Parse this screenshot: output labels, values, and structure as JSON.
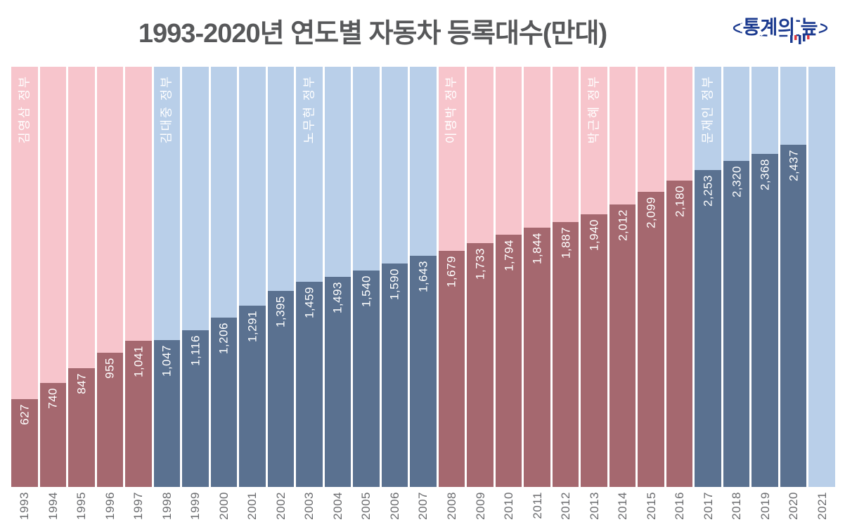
{
  "title": "1993-2020년 연도별 자동차 등록대수(만대)",
  "logo": {
    "text": "통계의 늪"
  },
  "colors": {
    "title_text": "#57585a",
    "axis_text": "#6a6b6e",
    "pink_bg": "#f7c5cc",
    "blue_bg": "#b9cfe9",
    "red_bar": "#a5686f",
    "blue_bar": "#5a7190",
    "bar_label_text": "#ffffff",
    "logo_navy": "#1b3a8f",
    "logo_red": "#e03a40"
  },
  "chart_data": {
    "type": "bar",
    "title": "1993-2020년 연도별 자동차 등록대수(만대)",
    "xlabel": "",
    "ylabel": "",
    "unit": "만대",
    "ylim": [
      0,
      3000
    ],
    "grid": false,
    "legend": "none",
    "years": [
      1993,
      1994,
      1995,
      1996,
      1997,
      1998,
      1999,
      2000,
      2001,
      2002,
      2003,
      2004,
      2005,
      2006,
      2007,
      2008,
      2009,
      2010,
      2011,
      2012,
      2013,
      2014,
      2015,
      2016,
      2017,
      2018,
      2019,
      2020,
      2021
    ],
    "values": [
      627,
      740,
      847,
      955,
      1041,
      1047,
      1116,
      1206,
      1291,
      1395,
      1459,
      1493,
      1540,
      1590,
      1643,
      1679,
      1733,
      1794,
      1844,
      1887,
      1940,
      2012,
      2099,
      2180,
      2253,
      2320,
      2368,
      2437,
      null
    ],
    "value_labels": [
      "627",
      "740",
      "847",
      "955",
      "1,041",
      "1,047",
      "1,116",
      "1,206",
      "1,291",
      "1,395",
      "1,459",
      "1,493",
      "1,540",
      "1,590",
      "1,643",
      "1,679",
      "1,733",
      "1,794",
      "1,844",
      "1,887",
      "1,940",
      "2,012",
      "2,099",
      "2,180",
      "2,253",
      "2,320",
      "2,368",
      "2,437",
      ""
    ],
    "governments": [
      {
        "label": "김영삼 정부",
        "start_year": 1993,
        "end_year": 1997,
        "theme": "red"
      },
      {
        "label": "김대중 정부",
        "start_year": 1998,
        "end_year": 2002,
        "theme": "blue"
      },
      {
        "label": "노무현 정부",
        "start_year": 2003,
        "end_year": 2007,
        "theme": "blue"
      },
      {
        "label": "이명박 정부",
        "start_year": 2008,
        "end_year": 2012,
        "theme": "red"
      },
      {
        "label": "박근혜 정부",
        "start_year": 2013,
        "end_year": 2016,
        "theme": "red"
      },
      {
        "label": "문재인 정부",
        "start_year": 2017,
        "end_year": 2021,
        "theme": "blue"
      }
    ]
  }
}
